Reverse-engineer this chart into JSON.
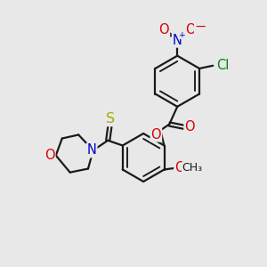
{
  "bg": "#e8e8e8",
  "bond_color": "#1a1a1a",
  "bw": 1.6,
  "atom_colors": {
    "O": "#dd0000",
    "N": "#0000cc",
    "Cl": "#008800",
    "S": "#aaaa00",
    "C": "#1a1a1a"
  },
  "fs": 9.5
}
